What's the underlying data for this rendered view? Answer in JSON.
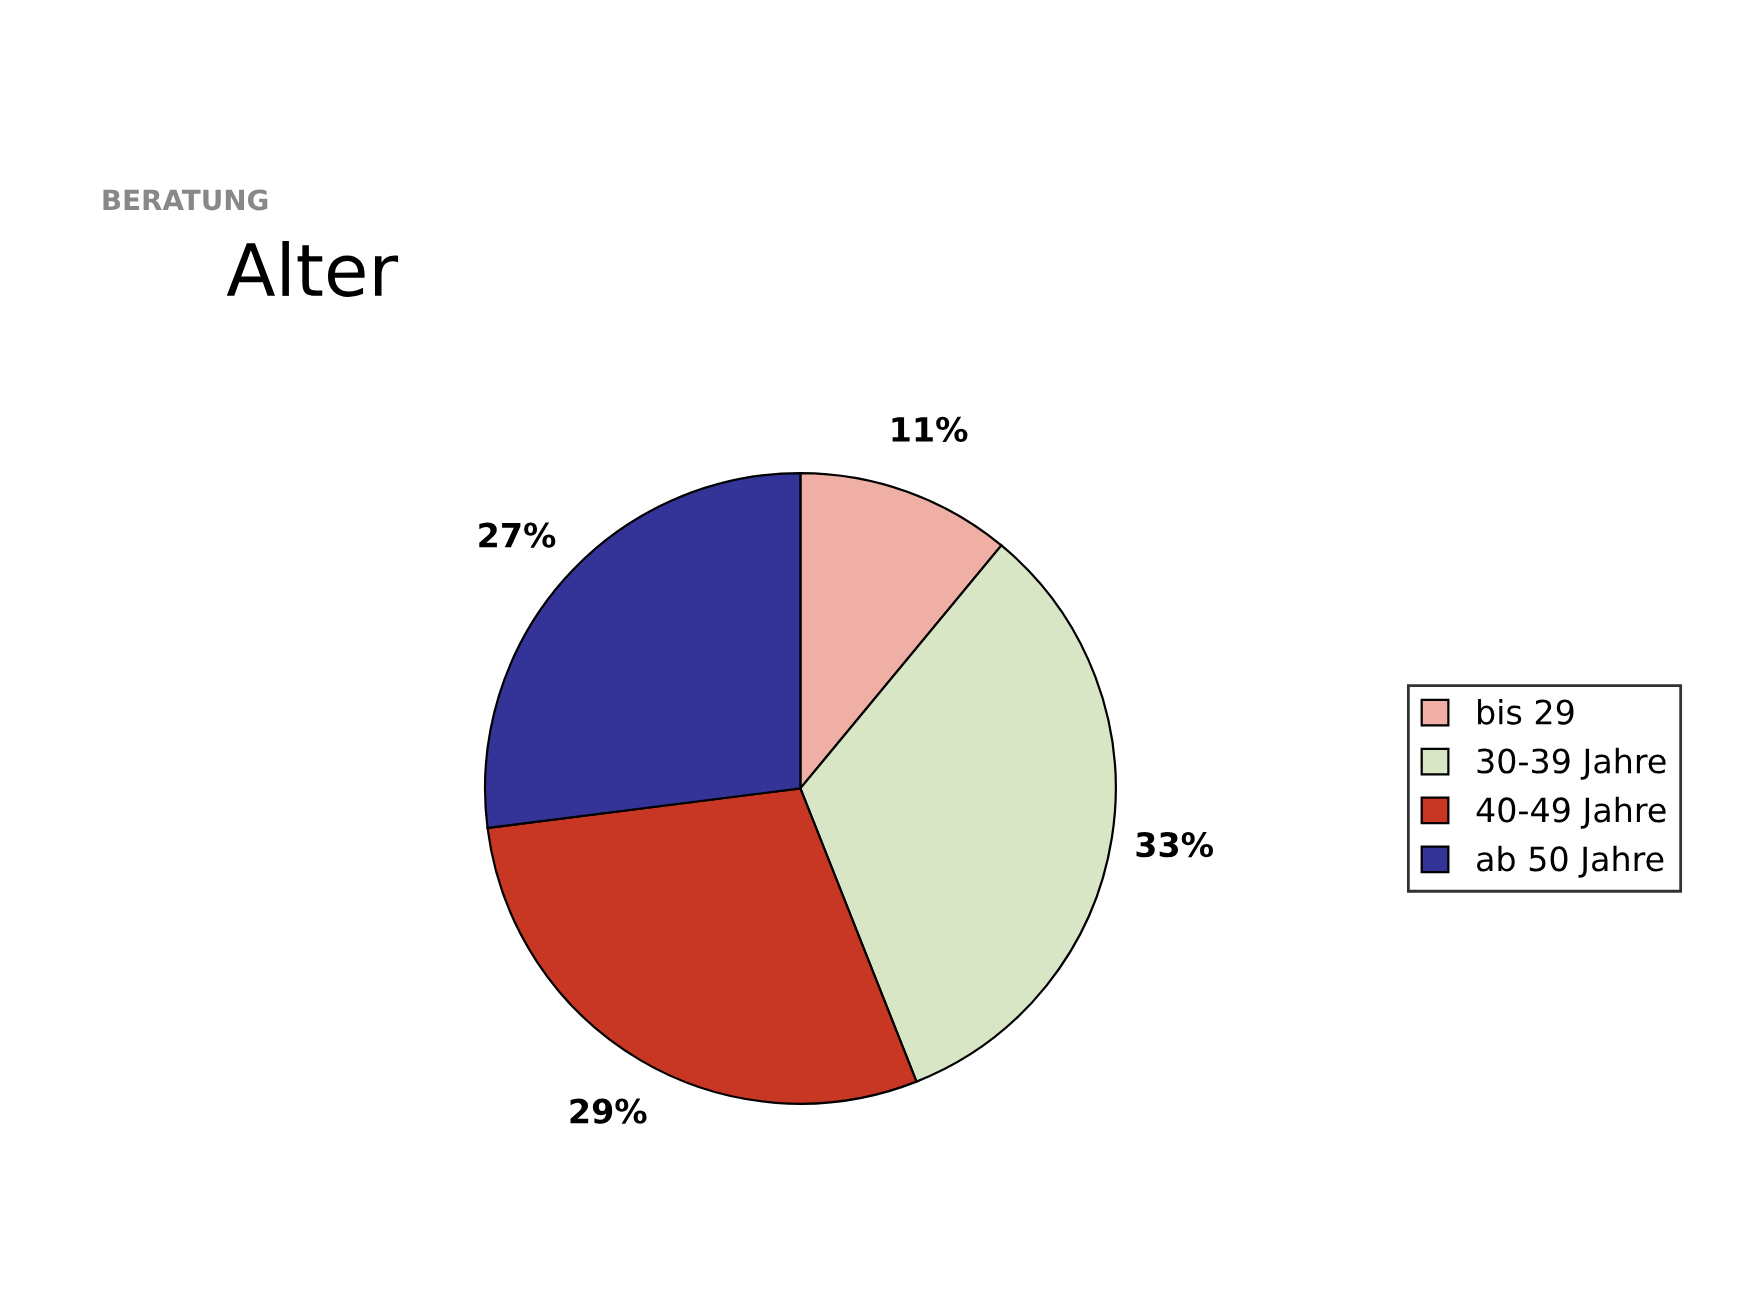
{
  "chart_data": {
    "type": "pie",
    "title": "Alter",
    "annotations": [
      "BERATUNG"
    ],
    "categories": [
      "bis 29",
      "30-39 Jahre",
      "40-49 Jahre",
      "ab 50 Jahre"
    ],
    "values": [
      11,
      33,
      29,
      27
    ],
    "value_labels": [
      "11%",
      "33%",
      "29%",
      "27%"
    ],
    "colors": [
      "#efafa5",
      "#d9e6c6",
      "#c83723",
      "#343397"
    ],
    "legend": "right"
  }
}
